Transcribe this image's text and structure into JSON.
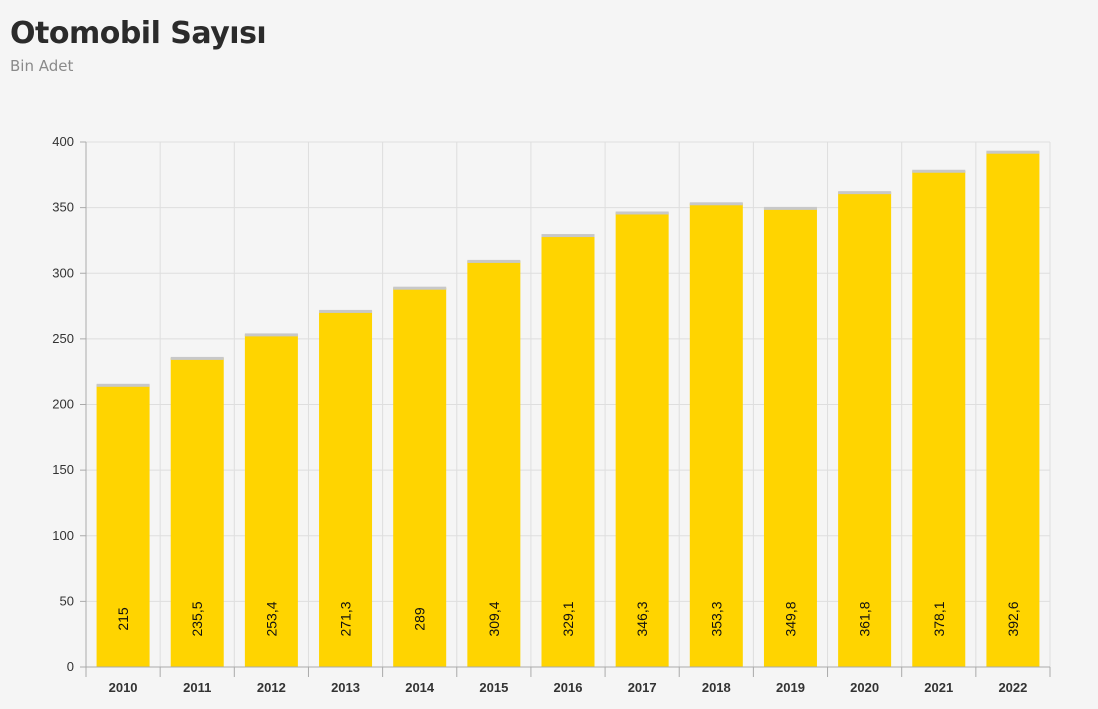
{
  "header": {
    "title": "Otomobil Sayısı",
    "subtitle": "Bin Adet"
  },
  "colors": {
    "bar": "#ffd400",
    "bar_cap": "#c8c8c8",
    "grid": "#dedede",
    "axis": "#aaaaaa",
    "background": "#f5f5f5"
  },
  "chart_data": {
    "type": "bar",
    "title": "Otomobil Sayısı",
    "subtitle": "Bin Adet",
    "xlabel": "",
    "ylabel": "",
    "categories": [
      "2010",
      "2011",
      "2012",
      "2013",
      "2014",
      "2015",
      "2016",
      "2017",
      "2018",
      "2019",
      "2020",
      "2021",
      "2022"
    ],
    "values": [
      215,
      235.5,
      253.4,
      271.3,
      289,
      309.4,
      329.1,
      346.3,
      353.3,
      349.8,
      361.8,
      378.1,
      392.6
    ],
    "value_labels": [
      "215",
      "235,5",
      "253,4",
      "271,3",
      "289",
      "309,4",
      "329,1",
      "346,3",
      "353,3",
      "349,8",
      "361,8",
      "378,1",
      "392,6"
    ],
    "ylim": [
      0,
      400
    ],
    "yticks": [
      0,
      50,
      100,
      150,
      200,
      250,
      300,
      350,
      400
    ],
    "grid": true,
    "legend": "none"
  }
}
